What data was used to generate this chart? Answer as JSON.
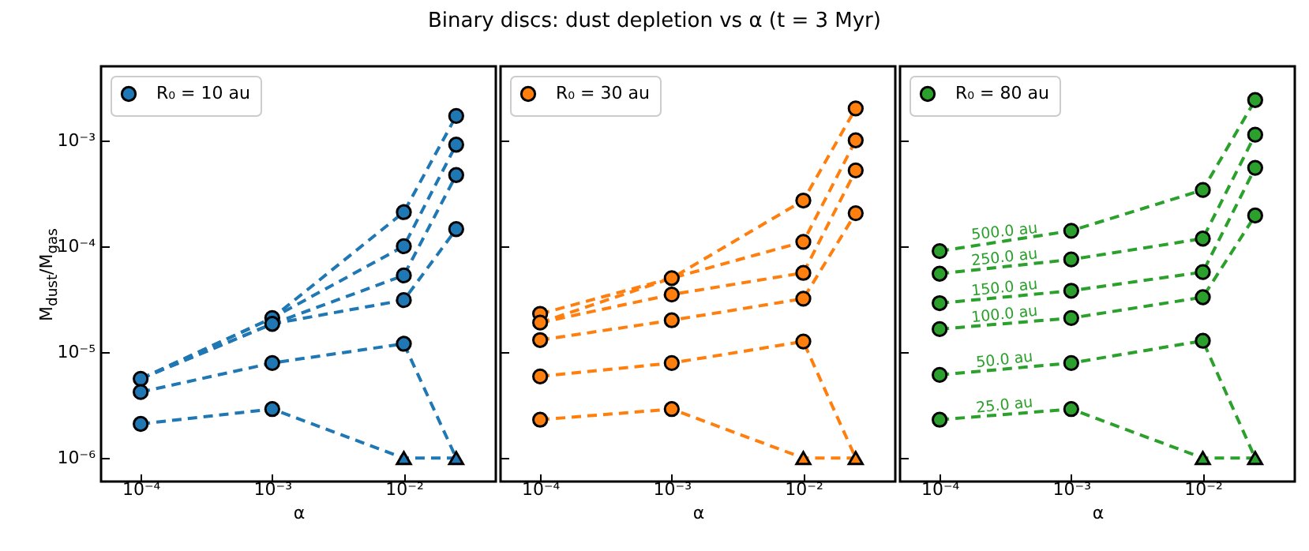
{
  "chart_data": [
    {
      "type": "line",
      "xlabel": "α",
      "ylabel": "M$_{dust}$/M$_{gas}$",
      "log": "xy",
      "xlim": [
        5e-05,
        0.05
      ],
      "ylim": [
        6e-07,
        0.005
      ],
      "xticks": [
        {
          "value": 0.0001,
          "label": "10⁻⁴"
        },
        {
          "value": 0.001,
          "label": "10⁻³"
        },
        {
          "value": 0.01,
          "label": "10⁻²"
        }
      ],
      "yticks": [
        {
          "value": 1e-06,
          "label": "10⁻⁶"
        },
        {
          "value": 1e-05,
          "label": "10⁻⁵"
        },
        {
          "value": 0.0001,
          "label": "10⁻⁴"
        },
        {
          "value": 0.001,
          "label": "10⁻³"
        }
      ],
      "legend": "top left",
      "line_style": "dashed",
      "x": [
        0.0001,
        0.001,
        0.01,
        0.025
      ],
      "series": [
        {
          "type": "line",
          "marker": "none",
          "color": "#1f77b4",
          "values": [
            5.6e-06,
            2.1e-05,
            0.00021,
            0.0017
          ]
        },
        {
          "type": "line",
          "marker": "none",
          "color": "#1f77b4",
          "values": [
            5.6e-06,
            2.1e-05,
            0.0001,
            0.00091
          ]
        },
        {
          "type": "line",
          "marker": "none",
          "color": "#1f77b4",
          "values": [
            5.6e-06,
            1.85e-05,
            5.3e-05,
            0.00047
          ]
        },
        {
          "type": "line",
          "marker": "none",
          "color": "#1f77b4",
          "values": [
            5.6e-06,
            1.85e-05,
            3.1e-05,
            0.000145
          ]
        },
        {
          "type": "line",
          "marker": "none",
          "color": "#1f77b4",
          "values": [
            4.2e-06,
            7.9e-06,
            1.2e-05,
            1e-06
          ]
        },
        {
          "type": "line",
          "marker": "none",
          "color": "#1f77b4",
          "values": [
            2.1e-06,
            2.9e-06,
            1e-06,
            1e-06
          ]
        },
        {
          "type": "scatter",
          "marker": "circle",
          "name": "R₀ = 10 au",
          "color": "#1f77b4",
          "x": [
            0.0001,
            0.0001,
            0.0001,
            0.001,
            0.001,
            0.001,
            0.001,
            0.01,
            0.01,
            0.01,
            0.01,
            0.01,
            0.025,
            0.025,
            0.025,
            0.025
          ],
          "values": [
            5.6e-06,
            4.2e-06,
            2.1e-06,
            2.1e-05,
            1.85e-05,
            7.9e-06,
            2.9e-06,
            0.00021,
            0.0001,
            5.3e-05,
            3.1e-05,
            1.2e-05,
            0.0017,
            0.00091,
            0.00047,
            0.000145
          ]
        },
        {
          "type": "scatter",
          "marker": "triangle",
          "color": "#1f77b4",
          "x": [
            0.01,
            0.025
          ],
          "values": [
            1e-06,
            1e-06
          ]
        }
      ]
    },
    {
      "type": "line",
      "title": "Binary discs: dust depletion vs α (t = 3 Myr)",
      "xlabel": "α",
      "log": "xy",
      "xlim": [
        5e-05,
        0.05
      ],
      "ylim": [
        6e-07,
        0.005
      ],
      "tick_labels": "x",
      "xticks": [
        {
          "value": 0.0001,
          "label": "10⁻⁴"
        },
        {
          "value": 0.001,
          "label": "10⁻³"
        },
        {
          "value": 0.01,
          "label": "10⁻²"
        }
      ],
      "yticks": [
        {
          "value": 1e-06,
          "label": null
        },
        {
          "value": 1e-05,
          "label": null
        },
        {
          "value": 0.0001,
          "label": null
        },
        {
          "value": 0.001,
          "label": null
        }
      ],
      "legend": "top left",
      "line_style": "dashed",
      "x": [
        0.0001,
        0.001,
        0.01,
        0.025
      ],
      "series": [
        {
          "type": "line",
          "marker": "none",
          "color": "#ff7f0e",
          "values": [
            2.3e-05,
            5e-05,
            0.00027,
            0.002
          ]
        },
        {
          "type": "line",
          "marker": "none",
          "color": "#ff7f0e",
          "values": [
            1.9e-05,
            5e-05,
            0.00011,
            0.001
          ]
        },
        {
          "type": "line",
          "marker": "none",
          "color": "#ff7f0e",
          "values": [
            1.9e-05,
            3.5e-05,
            5.6e-05,
            0.00052
          ]
        },
        {
          "type": "line",
          "marker": "none",
          "color": "#ff7f0e",
          "values": [
            1.3e-05,
            2e-05,
            3.2e-05,
            0.000205
          ]
        },
        {
          "type": "line",
          "marker": "none",
          "color": "#ff7f0e",
          "values": [
            5.9e-06,
            7.9e-06,
            1.26e-05,
            1e-06
          ]
        },
        {
          "type": "line",
          "marker": "none",
          "color": "#ff7f0e",
          "values": [
            2.3e-06,
            2.9e-06,
            1e-06,
            1e-06
          ]
        },
        {
          "type": "scatter",
          "marker": "circle",
          "name": "R₀ = 30 au",
          "color": "#ff7f0e",
          "x": [
            0.0001,
            0.0001,
            0.0001,
            0.0001,
            0.0001,
            0.001,
            0.001,
            0.001,
            0.001,
            0.001,
            0.01,
            0.01,
            0.01,
            0.01,
            0.01,
            0.025,
            0.025,
            0.025,
            0.025
          ],
          "values": [
            2.3e-05,
            1.9e-05,
            1.3e-05,
            5.9e-06,
            2.3e-06,
            5e-05,
            3.5e-05,
            2e-05,
            7.9e-06,
            2.9e-06,
            0.00027,
            0.00011,
            5.6e-05,
            3.2e-05,
            1.26e-05,
            0.002,
            0.001,
            0.00052,
            0.000205
          ]
        },
        {
          "type": "scatter",
          "marker": "triangle",
          "color": "#ff7f0e",
          "x": [
            0.01,
            0.025
          ],
          "values": [
            1e-06,
            1e-06
          ]
        }
      ]
    },
    {
      "type": "line",
      "xlabel": "α",
      "log": "xy",
      "xlim": [
        5e-05,
        0.05
      ],
      "ylim": [
        6e-07,
        0.005
      ],
      "tick_labels": "x",
      "xticks": [
        {
          "value": 0.0001,
          "label": "10⁻⁴"
        },
        {
          "value": 0.001,
          "label": "10⁻³"
        },
        {
          "value": 0.01,
          "label": "10⁻²"
        }
      ],
      "yticks": [
        {
          "value": 1e-06,
          "label": null
        },
        {
          "value": 1e-05,
          "label": null
        },
        {
          "value": 0.0001,
          "label": null
        },
        {
          "value": 0.001,
          "label": null
        }
      ],
      "legend": "top left",
      "line_style": "dashed",
      "x": [
        0.0001,
        0.001,
        0.01,
        0.025
      ],
      "series": [
        {
          "type": "line",
          "marker": "none",
          "name": "500.0 au",
          "color": "#2ca02c",
          "values": [
            9e-05,
            0.00014,
            0.00034,
            0.0024
          ]
        },
        {
          "type": "line",
          "marker": "none",
          "name": "250.0 au",
          "color": "#2ca02c",
          "values": [
            5.5e-05,
            7.5e-05,
            0.000118,
            0.00113
          ]
        },
        {
          "type": "line",
          "marker": "none",
          "name": "150.0 au",
          "color": "#2ca02c",
          "values": [
            2.9e-05,
            3.8e-05,
            5.7e-05,
            0.00055
          ]
        },
        {
          "type": "line",
          "marker": "none",
          "name": "100.0 au",
          "color": "#2ca02c",
          "values": [
            1.65e-05,
            2.1e-05,
            3.3e-05,
            0.000195
          ]
        },
        {
          "type": "line",
          "marker": "none",
          "name": "50.0 au",
          "color": "#2ca02c",
          "values": [
            6.1e-06,
            7.9e-06,
            1.28e-05,
            1e-06
          ]
        },
        {
          "type": "line",
          "marker": "none",
          "name": "25.0 au",
          "color": "#2ca02c",
          "values": [
            2.3e-06,
            2.9e-06,
            1e-06,
            1e-06
          ]
        },
        {
          "type": "scatter",
          "marker": "circle",
          "name": "R₀ = 80 au",
          "color": "#2ca02c",
          "x": [
            0.0001,
            0.001,
            0.01,
            0.025,
            0.0001,
            0.001,
            0.01,
            0.025,
            0.0001,
            0.001,
            0.01,
            0.025,
            0.0001,
            0.001,
            0.01,
            0.025,
            0.0001,
            0.001,
            0.01,
            0.0001,
            0.001
          ],
          "values": [
            9e-05,
            0.00014,
            0.00034,
            0.0024,
            5.5e-05,
            7.5e-05,
            0.000118,
            0.00113,
            2.9e-05,
            3.8e-05,
            5.7e-05,
            0.00055,
            1.65e-05,
            2.1e-05,
            3.3e-05,
            0.000195,
            6.1e-06,
            7.9e-06,
            1.28e-05,
            2.3e-06,
            2.9e-06
          ]
        },
        {
          "type": "scatter",
          "marker": "triangle",
          "color": "#2ca02c",
          "x": [
            0.01,
            0.025
          ],
          "values": [
            1e-06,
            1e-06
          ]
        }
      ]
    }
  ]
}
